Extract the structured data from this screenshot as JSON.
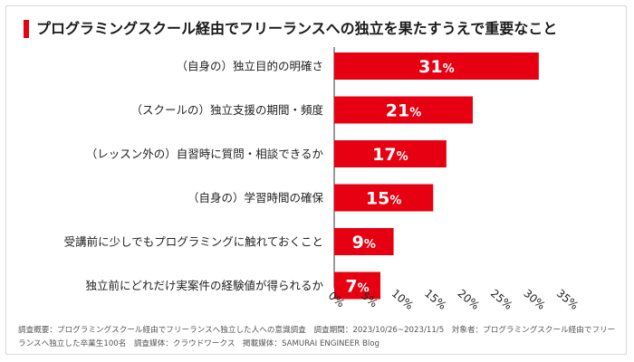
{
  "chart_data": {
    "type": "bar",
    "orientation": "horizontal",
    "title": "プログラミングスクール経由でフリーランスへの独立を果たすうえで重要なこと",
    "categories": [
      "（自身の）独立目的の明確さ",
      "（スクールの）独立支援の期間・頻度",
      "（レッスン外の）自習時に質問・相談できるか",
      "（自身の）学習時間の確保",
      "受講前に少しでもプログラミングに触れておくこと",
      "独立前にどれだけ実案件の経験値が得られるか"
    ],
    "values": [
      31,
      21,
      17,
      15,
      9,
      7
    ],
    "value_unit": "%",
    "xlim": [
      0,
      35
    ],
    "x_ticks": [
      "0%",
      "5%",
      "10%",
      "15%",
      "20%",
      "25%",
      "30%",
      "35%"
    ],
    "grid": false,
    "bar_color": "#e60012"
  },
  "footnote": "調査概要：プログラミングスクール経由でフリーランスへ独立した人への意識調査　調査期間：2023/10/26~2023/11/5　対象者：プログラミングスクール経由でフリーランスへ独立した卒業生100名　調査媒体：クラウドワークス　掲載媒体：SAMURAI ENGINEER Blog",
  "colors": {
    "accent": "#e60012",
    "text": "#222222",
    "axis": "#333333"
  }
}
